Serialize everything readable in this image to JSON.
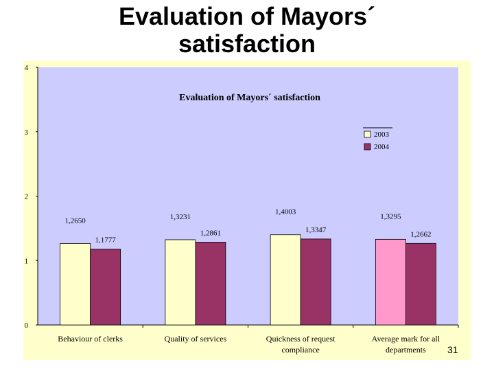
{
  "slide": {
    "title_line1": "Evaluation of Mayors´",
    "title_line2": "satisfaction",
    "page_number": "31"
  },
  "chart_data": {
    "type": "bar",
    "title": "Evaluation of Mayors´ satisfaction",
    "categories": [
      [
        "Behaviour of clerks"
      ],
      [
        "Quality of services"
      ],
      [
        "Quickness of request",
        "compliance"
      ],
      [
        "Average mark for all",
        "departments"
      ]
    ],
    "series": [
      {
        "name": "2003",
        "values": [
          1.265,
          1.3231,
          1.4003,
          1.3295
        ],
        "labels": [
          "1,2650",
          "1,3231",
          "1,4003",
          "1,3295"
        ],
        "color": "#ffffcc",
        "point_colors": [
          "#ffffcc",
          "#ffffcc",
          "#ffffcc",
          "#ff99cc"
        ]
      },
      {
        "name": "2004",
        "values": [
          1.1777,
          1.2861,
          1.3347,
          1.2662
        ],
        "labels": [
          "1,1777",
          "1,2861",
          "1,3347",
          "1,2662"
        ],
        "color": "#993366",
        "point_colors": [
          "#993366",
          "#993366",
          "#993366",
          "#993366"
        ]
      }
    ],
    "y_ticks": [
      "0",
      "1",
      "2",
      "3",
      "4"
    ],
    "ylim": [
      0,
      4
    ],
    "grid": false,
    "legend_position": "top-right",
    "colors": {
      "outer_background": "#ffffcc",
      "plot_background": "#ccccff",
      "highlight_bar": "#ff99cc"
    }
  }
}
